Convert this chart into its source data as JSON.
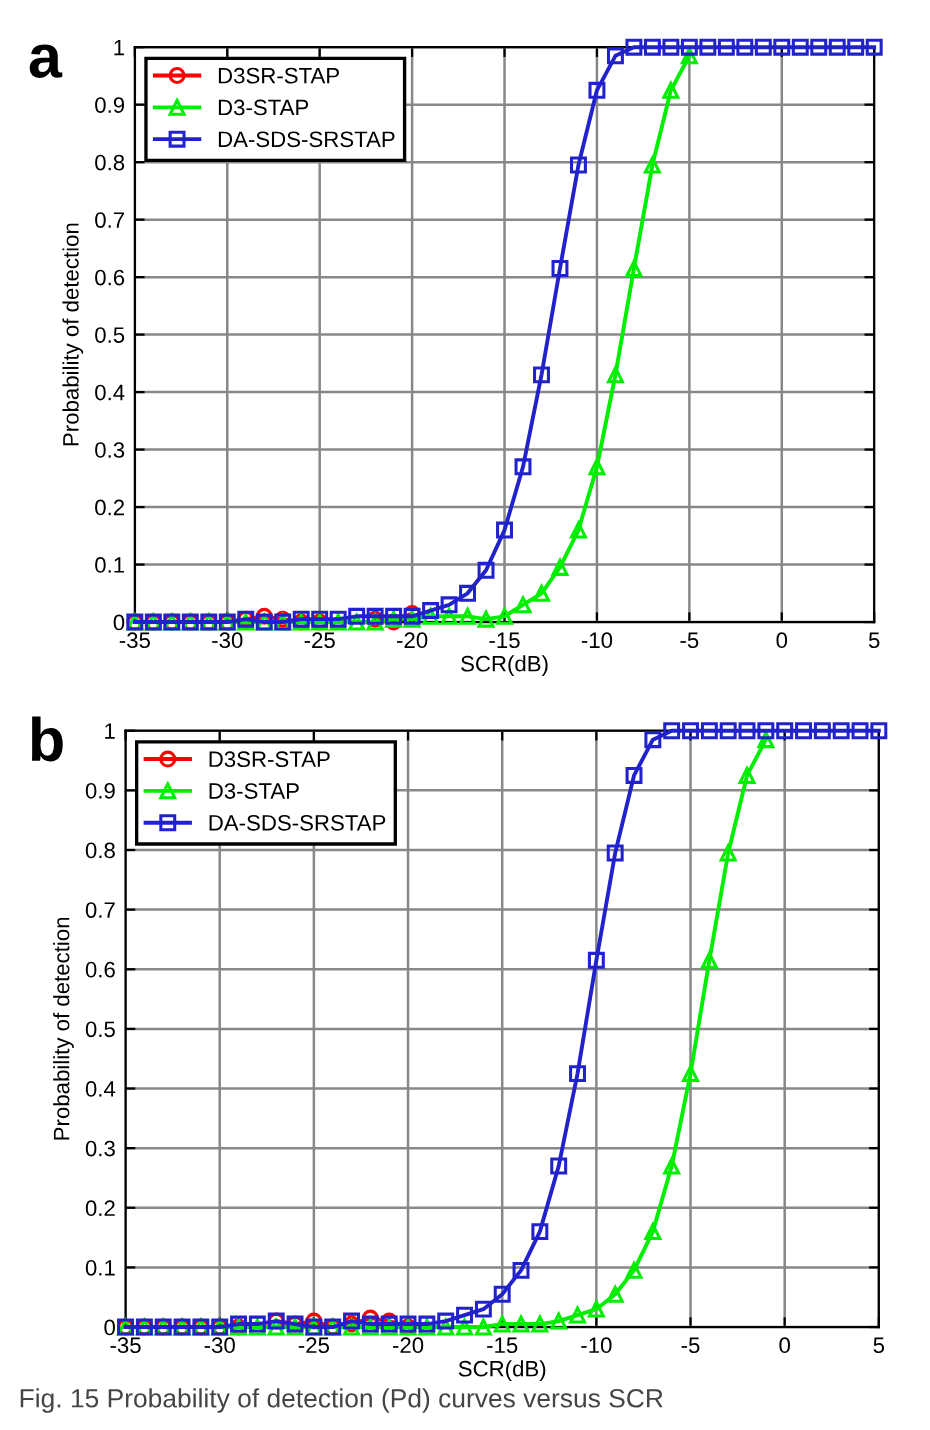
{
  "chart_data": [
    {
      "type": "line",
      "title": "a",
      "xlabel": "SCR(dB)",
      "ylabel": "Probability of detection",
      "x": [
        -35,
        -34,
        -33,
        -32,
        -31,
        -30,
        -29,
        -28,
        -27,
        -26,
        -25,
        -24,
        -23,
        -22,
        -21,
        -20,
        -19,
        -18,
        -17,
        -16,
        -15,
        -14,
        -13,
        -12,
        -11,
        -10,
        -9,
        -8,
        -7,
        -6,
        -5,
        -4,
        -3,
        -2,
        -1,
        0,
        1,
        2,
        3,
        4,
        5
      ],
      "series": [
        {
          "name": "D3SR-STAP",
          "color": "#ff0000",
          "marker": "circle",
          "values": [
            0,
            0,
            0,
            0,
            0,
            0,
            0.005,
            0.01,
            0.005,
            0,
            0,
            null,
            null,
            0.005,
            0,
            0.015,
            null,
            null,
            null,
            null,
            null,
            null,
            null,
            null,
            null,
            null,
            null,
            null,
            null,
            null,
            null,
            null,
            null,
            null,
            null,
            null,
            null,
            null,
            null,
            null,
            null
          ]
        },
        {
          "name": "D3-STAP",
          "color": "#00ee00",
          "marker": "triangle",
          "values": [
            0,
            0,
            0,
            0,
            0,
            0,
            0,
            0,
            0,
            0,
            0,
            0,
            0,
            0,
            0.005,
            0.005,
            0.01,
            0.01,
            0.01,
            0.005,
            0.01,
            0.03,
            0.05,
            0.095,
            0.16,
            0.27,
            0.43,
            0.615,
            0.795,
            0.925,
            0.985,
            null,
            null,
            null,
            null,
            null,
            null,
            null,
            null,
            null,
            null
          ]
        },
        {
          "name": "DA-SDS-SRSTAP",
          "color": "#2222cc",
          "marker": "square",
          "values": [
            0,
            0,
            0,
            0,
            0,
            0,
            0.005,
            0,
            0,
            0.005,
            0.005,
            0.005,
            0.01,
            0.01,
            0.01,
            0.01,
            0.02,
            0.03,
            0.05,
            0.09,
            0.16,
            0.27,
            0.43,
            0.615,
            0.795,
            0.925,
            0.985,
            1,
            1,
            1,
            1,
            1,
            1,
            1,
            1,
            1,
            1,
            1,
            1,
            1,
            1
          ]
        }
      ],
      "xlim": [
        -35,
        5
      ],
      "ylim": [
        0,
        1
      ],
      "xticks": [
        -35,
        -30,
        -25,
        -20,
        -15,
        -10,
        -5,
        0,
        5
      ],
      "yticks": [
        0,
        0.1,
        0.2,
        0.3,
        0.4,
        0.5,
        0.6,
        0.7,
        0.8,
        0.9,
        1
      ],
      "grid": true,
      "legend": "top left",
      "line_style": "solid"
    },
    {
      "type": "line",
      "title": "b",
      "xlabel": "SCR(dB)",
      "ylabel": "Probability of detection",
      "x": [
        -35,
        -34,
        -33,
        -32,
        -31,
        -30,
        -29,
        -28,
        -27,
        -26,
        -25,
        -24,
        -23,
        -22,
        -21,
        -20,
        -19,
        -18,
        -17,
        -16,
        -15,
        -14,
        -13,
        -12,
        -11,
        -10,
        -9,
        -8,
        -7,
        -6,
        -5,
        -4,
        -3,
        -2,
        -1,
        0,
        1,
        2,
        3,
        4,
        5
      ],
      "series": [
        {
          "name": "D3SR-STAP",
          "color": "#ff0000",
          "marker": "circle",
          "values": [
            0,
            0,
            0,
            0,
            0,
            0,
            0,
            null,
            0.01,
            0.005,
            0.01,
            0,
            0.005,
            0.015,
            0.01,
            0,
            null,
            null,
            null,
            null,
            null,
            null,
            null,
            null,
            null,
            null,
            null,
            null,
            null,
            null,
            null,
            null,
            null,
            null,
            null,
            null,
            null,
            null,
            null,
            null,
            null
          ]
        },
        {
          "name": "D3-STAP",
          "color": "#00ee00",
          "marker": "triangle",
          "values": [
            0,
            0,
            0,
            0,
            0,
            0,
            0,
            0,
            0,
            0,
            0,
            0,
            0,
            0,
            0,
            0,
            0,
            0,
            0,
            0,
            0.005,
            0.005,
            0.005,
            0.01,
            0.02,
            0.03,
            0.055,
            0.095,
            0.16,
            0.27,
            0.425,
            0.615,
            0.795,
            0.925,
            0.985,
            null,
            null,
            null,
            null,
            null,
            null
          ]
        },
        {
          "name": "DA-SDS-SRSTAP",
          "color": "#2222cc",
          "marker": "square",
          "values": [
            0,
            0,
            0,
            0,
            0,
            0,
            0.005,
            0.005,
            0.01,
            0.005,
            0,
            0,
            0.01,
            0.005,
            0.005,
            0.005,
            0.005,
            0.01,
            0.02,
            0.03,
            0.055,
            0.095,
            0.16,
            0.27,
            0.425,
            0.615,
            0.795,
            0.925,
            0.985,
            1,
            1,
            1,
            1,
            1,
            1,
            1,
            1,
            1,
            1,
            1,
            1
          ]
        }
      ],
      "xlim": [
        -35,
        5
      ],
      "ylim": [
        0,
        1
      ],
      "xticks": [
        -35,
        -30,
        -25,
        -20,
        -15,
        -10,
        -5,
        0,
        5
      ],
      "yticks": [
        0,
        0.1,
        0.2,
        0.3,
        0.4,
        0.5,
        0.6,
        0.7,
        0.8,
        0.9,
        1
      ],
      "grid": true,
      "legend": "top left",
      "line_style": "solid",
      "annotations": [
        "Fig. 15 Probability of detection (Pd) curves versus SCR"
      ]
    }
  ]
}
